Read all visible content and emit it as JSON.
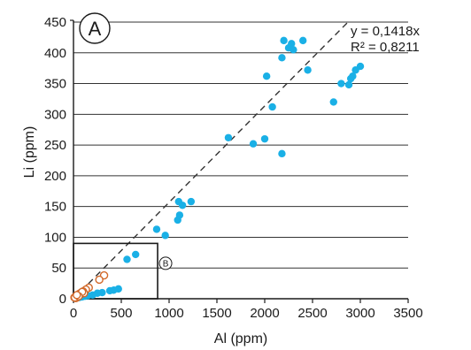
{
  "chart_data": {
    "type": "scatter",
    "panel_label": "A",
    "xlabel": "Al (ppm)",
    "ylabel": "Li (ppm)",
    "xlim": [
      0,
      3500
    ],
    "ylim": [
      0,
      450
    ],
    "x_ticks": [
      0,
      500,
      1000,
      1500,
      2000,
      2500,
      3000,
      3500
    ],
    "y_ticks": [
      0,
      50,
      100,
      150,
      200,
      250,
      300,
      350,
      400,
      450
    ],
    "grid": "horizontal",
    "trendline": {
      "equation": "y = 0,1418x",
      "r2": "R² = 0,8211",
      "slope": 0.1418,
      "style": "dashed"
    },
    "inset": {
      "label": "B",
      "x_range": [
        0,
        880
      ],
      "y_range": [
        0,
        90
      ]
    },
    "colors": {
      "filled_series": "#1ab0e6",
      "open_series": "#d2692a",
      "trendline": "#333333",
      "grid": "#333333"
    },
    "series": [
      {
        "marker": "filled-circle",
        "points": [
          [
            2200,
            420
          ],
          [
            2400,
            420
          ],
          [
            2280,
            415
          ],
          [
            2250,
            408
          ],
          [
            2300,
            405
          ],
          [
            2180,
            392
          ],
          [
            2450,
            372
          ],
          [
            2020,
            362
          ],
          [
            2800,
            350
          ],
          [
            2900,
            358
          ],
          [
            2880,
            348
          ],
          [
            2950,
            372
          ],
          [
            3000,
            378
          ],
          [
            2920,
            362
          ],
          [
            2720,
            320
          ],
          [
            2080,
            312
          ],
          [
            1620,
            262
          ],
          [
            2000,
            260
          ],
          [
            1880,
            252
          ],
          [
            2180,
            236
          ],
          [
            1230,
            158
          ],
          [
            1100,
            158
          ],
          [
            1140,
            152
          ],
          [
            1110,
            136
          ],
          [
            1090,
            128
          ],
          [
            870,
            113
          ],
          [
            960,
            103
          ],
          [
            650,
            72
          ],
          [
            560,
            64
          ],
          [
            470,
            16
          ],
          [
            420,
            14
          ],
          [
            380,
            13
          ],
          [
            300,
            10
          ],
          [
            250,
            9
          ],
          [
            200,
            6
          ],
          [
            150,
            5
          ],
          [
            120,
            4
          ],
          [
            90,
            3
          ],
          [
            60,
            2
          ],
          [
            30,
            1
          ]
        ]
      },
      {
        "marker": "open-circle",
        "points": [
          [
            320,
            38
          ],
          [
            270,
            31
          ],
          [
            160,
            18
          ],
          [
            130,
            15
          ],
          [
            100,
            12
          ],
          [
            80,
            10
          ],
          [
            60,
            8
          ],
          [
            50,
            6
          ],
          [
            40,
            5
          ],
          [
            30,
            4
          ],
          [
            20,
            3
          ],
          [
            10,
            2
          ],
          [
            70,
            7
          ],
          [
            110,
            9
          ],
          [
            90,
            11
          ],
          [
            45,
            3
          ],
          [
            25,
            1
          ],
          [
            15,
            2
          ],
          [
            55,
            4
          ],
          [
            35,
            6
          ]
        ]
      }
    ]
  }
}
